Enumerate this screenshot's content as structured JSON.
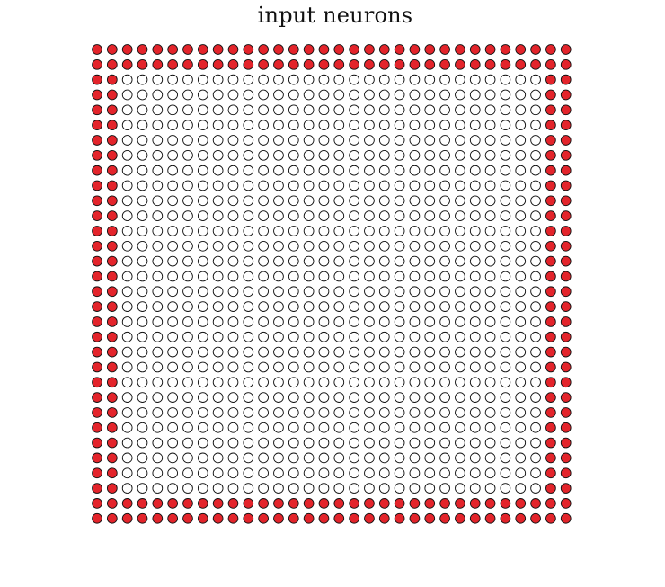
{
  "title": "input neurons",
  "grid": {
    "rows": 32,
    "cols": 32,
    "border_layers": 2
  },
  "colors": {
    "highlighted_fill": "#e3242b",
    "plain_fill": "#ffffff",
    "outline": "#111111"
  }
}
